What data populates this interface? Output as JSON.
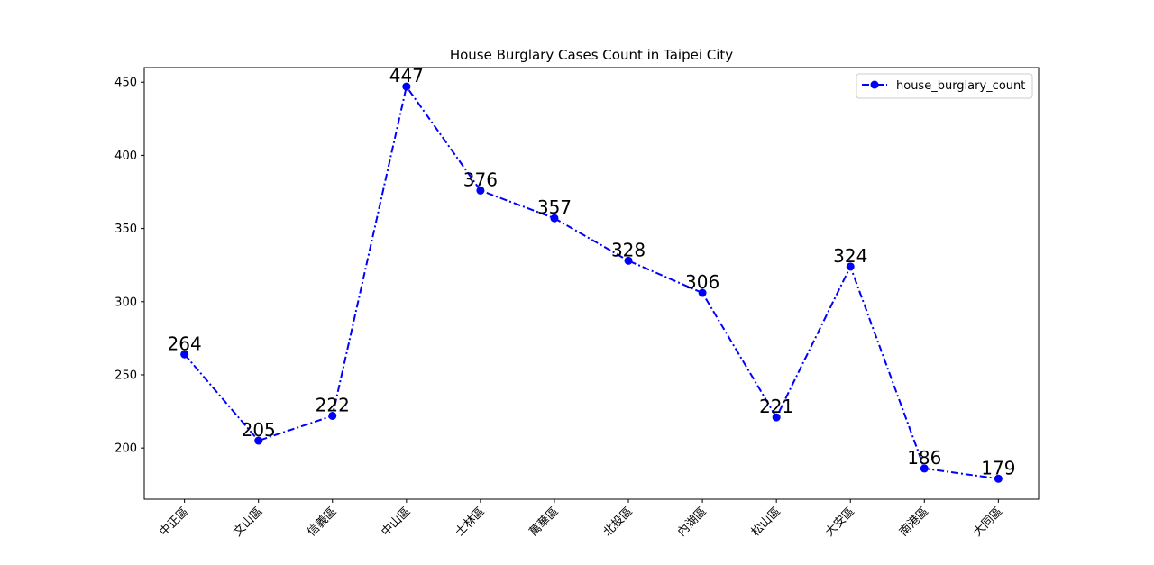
{
  "chart_data": {
    "type": "line",
    "title": "House Burglary Cases Count in Taipei City",
    "xlabel": "",
    "ylabel": "",
    "categories": [
      "中正區",
      "文山區",
      "信義區",
      "中山區",
      "士林區",
      "萬華區",
      "北投區",
      "內湖區",
      "松山區",
      "大安區",
      "南港區",
      "大同區"
    ],
    "series": [
      {
        "name": "house_burglary_count",
        "values": [
          264,
          205,
          222,
          447,
          376,
          357,
          328,
          306,
          221,
          324,
          186,
          179
        ],
        "color": "#0000ff",
        "line_style": "dash-dot",
        "marker": "circle"
      }
    ],
    "ylim": [
      165,
      460
    ],
    "yticks": [
      200,
      250,
      300,
      350,
      400,
      450
    ],
    "data_labels": true,
    "grid": false,
    "legend": "upper right",
    "xtick_rotation": 45
  }
}
